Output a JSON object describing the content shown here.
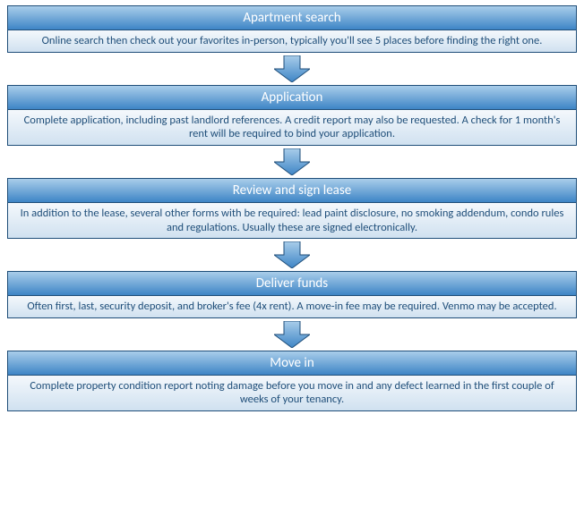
{
  "type": "flowchart",
  "direction": "vertical",
  "background_color": "#ffffff",
  "title_gradient_top": "#a9cdea",
  "title_gradient_bottom": "#3e85c6",
  "title_border_color": "#1f4e79",
  "title_text_color": "#ffffff",
  "title_fontsize": 15,
  "body_gradient_top": "#f4f8fc",
  "body_gradient_bottom": "#d0e1f0",
  "body_border_color": "#1f4e79",
  "body_text_color": "#1f4e79",
  "body_fontsize": 12.5,
  "arrow_fill_top": "#a9cdea",
  "arrow_fill_bottom": "#3e85c6",
  "arrow_stroke": "#1f4e79",
  "arrow_width": 40,
  "arrow_height": 30,
  "steps": [
    {
      "title": "Apartment search",
      "body": "Online search then check out your favorites in-person, typically you'll see 5 places before finding the right one."
    },
    {
      "title": "Application",
      "body": "Complete application, including past landlord references.  A credit report may also be requested.  A check for 1 month's rent will be required to bind your application."
    },
    {
      "title": "Review and sign lease",
      "body": "In addition to the lease, several other forms with be required: lead paint disclosure, no smoking addendum, condo rules and regulations.  Usually these are signed electronically."
    },
    {
      "title": "Deliver funds",
      "body": "Often first, last, security deposit, and broker's fee (4x rent).  A move-in fee may be required.  Venmo may be accepted."
    },
    {
      "title": "Move in",
      "body": "Complete property condition report noting damage before you move in and any defect learned in the first couple of weeks of your tenancy."
    }
  ]
}
